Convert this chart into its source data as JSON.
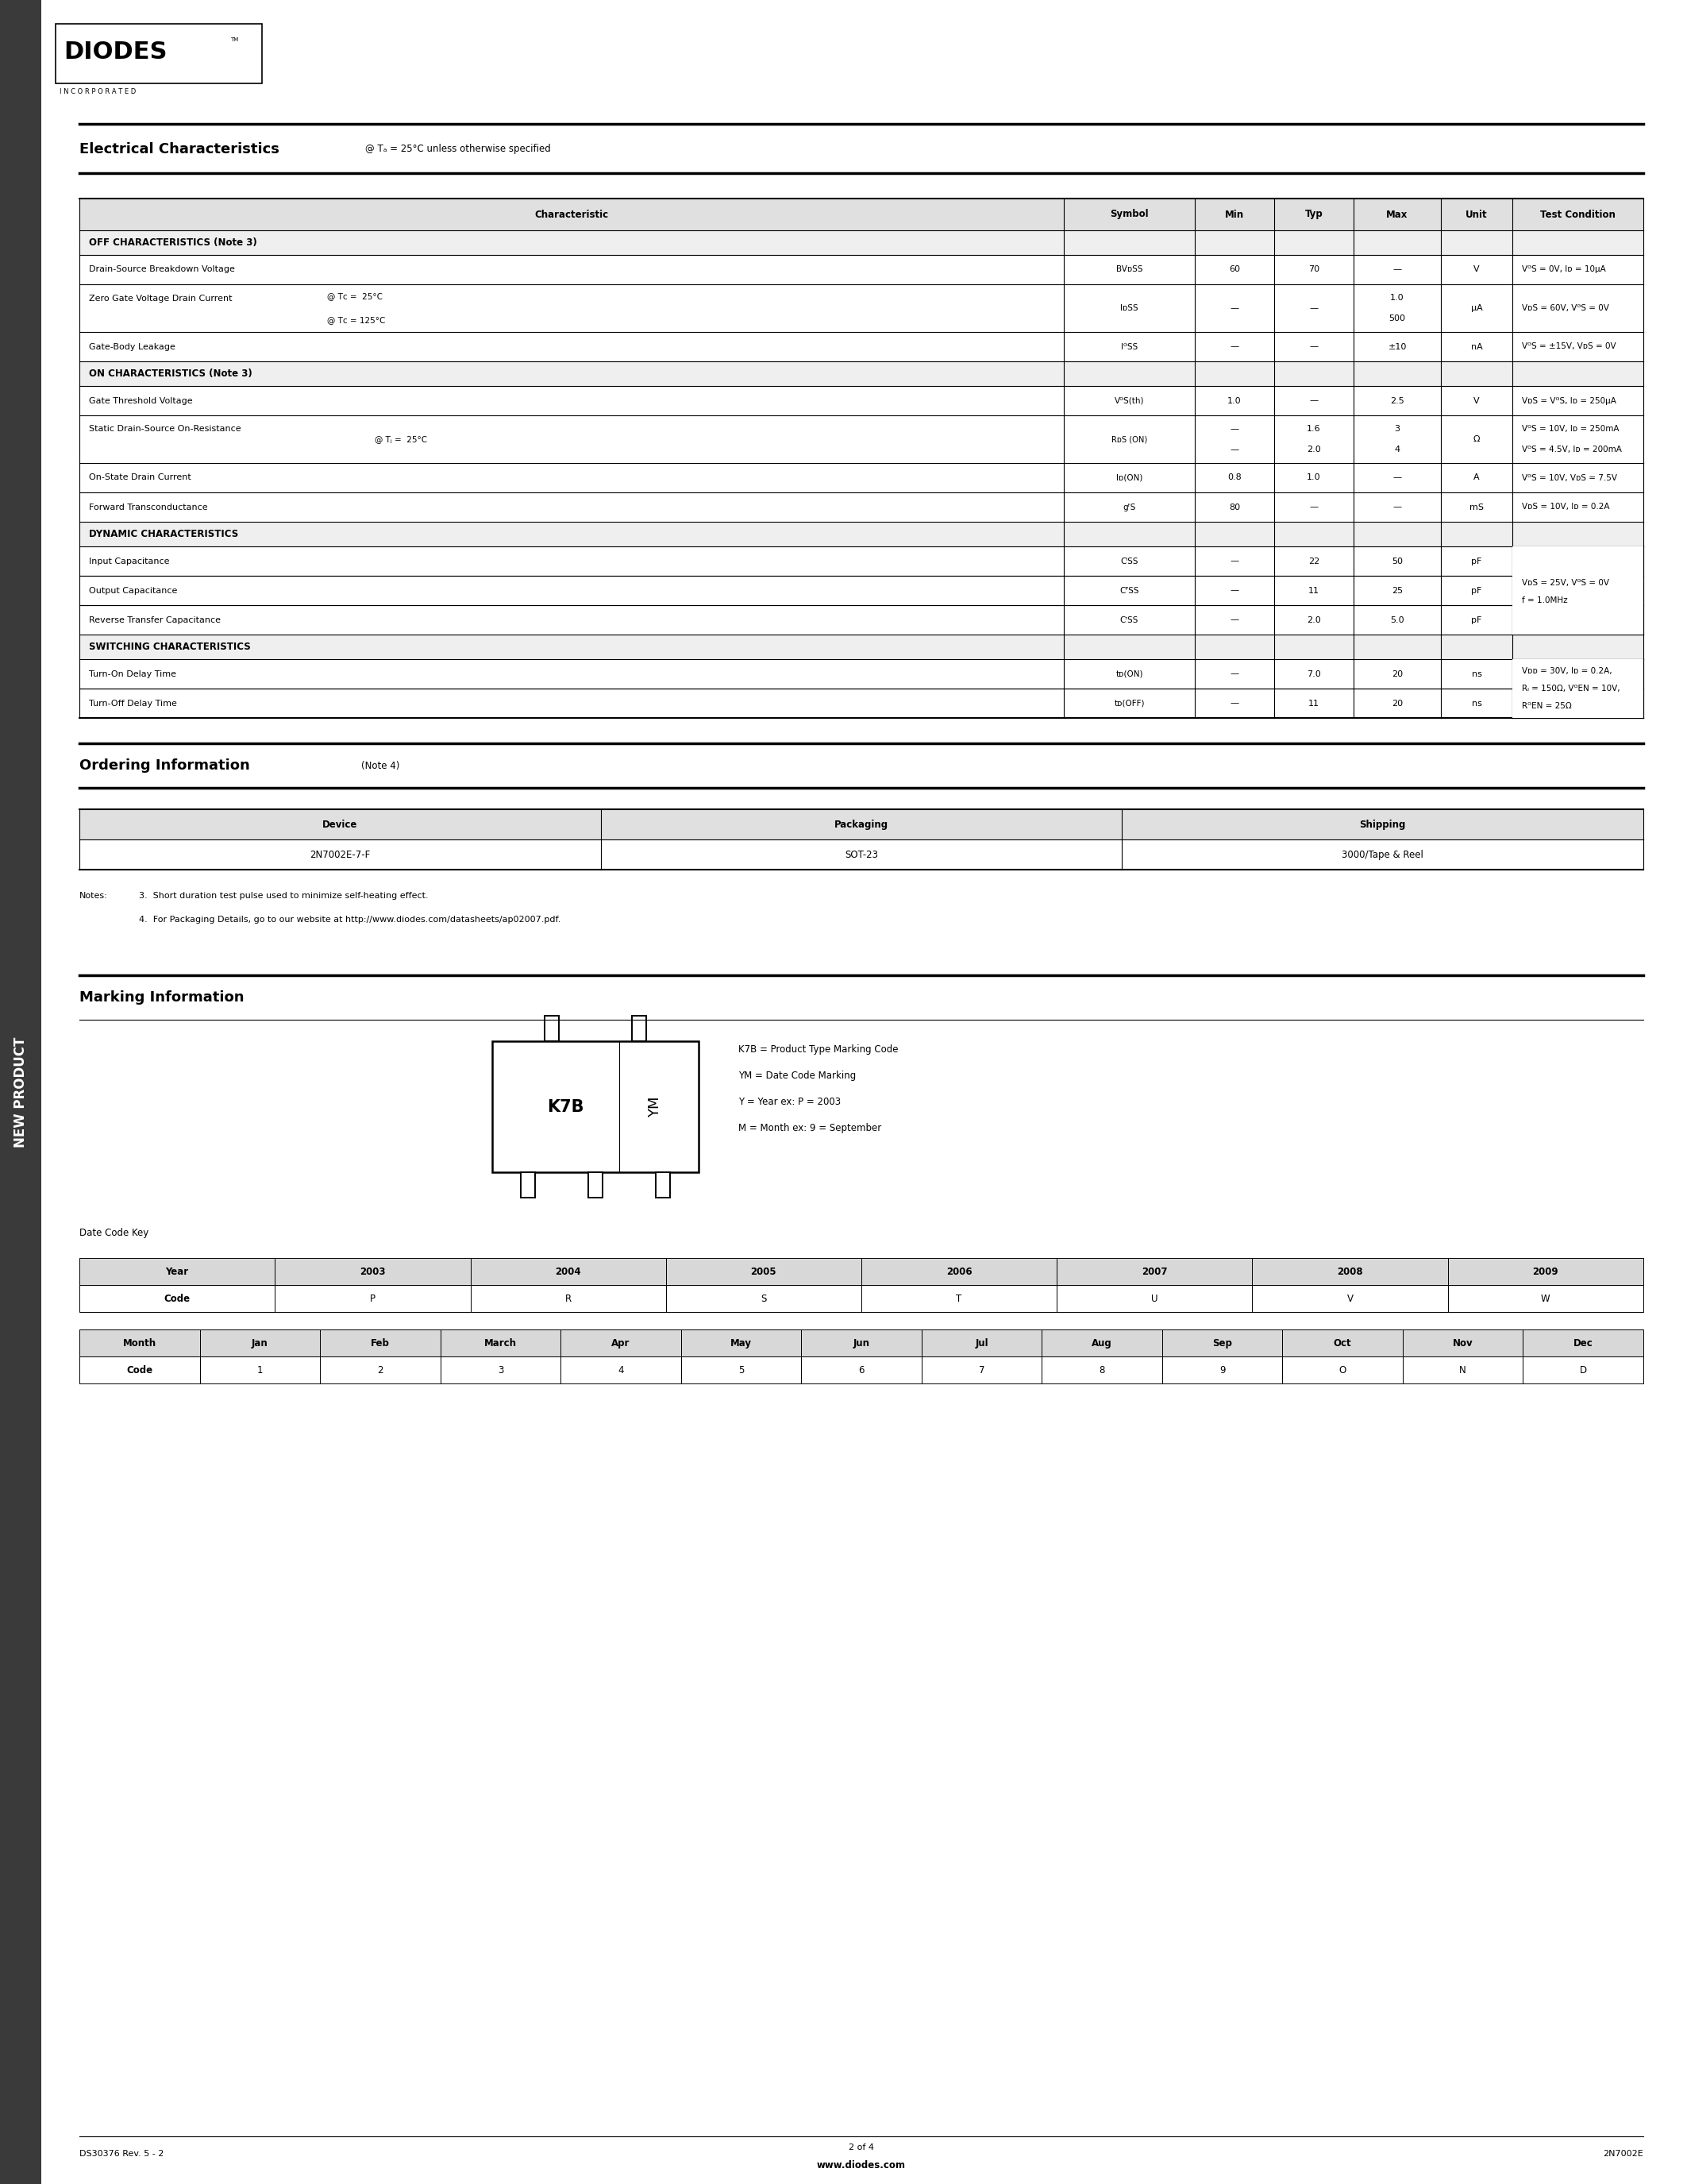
{
  "bg_color": "#ffffff",
  "sidebar_color": "#3a3a3a",
  "page_width": 21.25,
  "page_height": 27.5,
  "logo_text": "DIODES",
  "logo_subtext": "I N C O R P O R A T E D",
  "elec_title": "Electrical Characteristics",
  "elec_subtitle": "@ Tₐ = 25°C unless otherwise specified",
  "table_headers": [
    "Characteristic",
    "Symbol",
    "Min",
    "Typ",
    "Max",
    "Unit",
    "Test Condition"
  ],
  "elec_rows": [
    {
      "type": "section",
      "text": "OFF CHARACTERISTICS (Note 3)"
    },
    {
      "type": "data",
      "char": "Drain-Source Breakdown Voltage",
      "char2": "",
      "symbol": "BVᴅSS",
      "min": "60",
      "typ": "70",
      "max": "—",
      "unit": "V",
      "cond": "VᴳS = 0V, Iᴅ = 10μA"
    },
    {
      "type": "data2",
      "char": "Zero Gate Voltage Drain Current",
      "char2_1": "@ Tᴄ =  25°C",
      "char2_2": "@ Tᴄ = 125°C",
      "symbol": "IᴅSS",
      "min": "—",
      "typ": "—",
      "max1": "1.0",
      "max2": "500",
      "unit": "μA",
      "cond": "VᴅS = 60V, VᴳS = 0V"
    },
    {
      "type": "data",
      "char": "Gate-Body Leakage",
      "char2": "",
      "symbol": "IᴳSS",
      "min": "—",
      "typ": "—",
      "max": "±10",
      "unit": "nA",
      "cond": "VᴳS = ±15V, VᴅS = 0V"
    },
    {
      "type": "section",
      "text": "ON CHARACTERISTICS (Note 3)"
    },
    {
      "type": "data",
      "char": "Gate Threshold Voltage",
      "char2": "",
      "symbol": "VᴳS(th)",
      "min": "1.0",
      "typ": "—",
      "max": "2.5",
      "unit": "V",
      "cond": "VᴅS = VᴳS, Iᴅ = 250μA"
    },
    {
      "type": "data2b",
      "char": "Static Drain-Source On-Resistance",
      "char2": "@ Tⱼ =  25°C",
      "symbol": "RᴅS (ON)",
      "min1": "—",
      "min2": "—",
      "typ1": "1.6",
      "typ2": "2.0",
      "max1": "3",
      "max2": "4",
      "unit": "Ω",
      "cond1": "VᴳS = 10V, Iᴅ = 250mA",
      "cond2": "VᴳS = 4.5V, Iᴅ = 200mA"
    },
    {
      "type": "data",
      "char": "On-State Drain Current",
      "char2": "",
      "symbol": "Iᴅ(ON)",
      "min": "0.8",
      "typ": "1.0",
      "max": "—",
      "unit": "A",
      "cond": "VᴳS = 10V, VᴅS = 7.5V"
    },
    {
      "type": "data",
      "char": "Forward Transconductance",
      "char2": "",
      "symbol": "gᶠS",
      "min": "80",
      "typ": "—",
      "max": "—",
      "unit": "mS",
      "cond": "VᴅS = 10V, Iᴅ = 0.2A"
    },
    {
      "type": "section",
      "text": "DYNAMIC CHARACTERISTICS"
    },
    {
      "type": "data_ciss",
      "char": "Input Capacitance",
      "symbol": "CᴵSS",
      "min": "—",
      "typ": "22",
      "max": "50",
      "unit": "pF"
    },
    {
      "type": "data_coss",
      "char": "Output Capacitance",
      "symbol": "CᴾSS",
      "min": "—",
      "typ": "11",
      "max": "25",
      "unit": "pF",
      "cond1": "VᴅS = 25V, VᴳS = 0V",
      "cond2": "f = 1.0MHz"
    },
    {
      "type": "data_crss",
      "char": "Reverse Transfer Capacitance",
      "symbol": "CʳSS",
      "min": "—",
      "typ": "2.0",
      "max": "5.0",
      "unit": "pF"
    },
    {
      "type": "section",
      "text": "SWITCHING CHARACTERISTICS"
    },
    {
      "type": "data_ton",
      "char": "Turn-On Delay Time",
      "symbol": "tᴅ(ON)",
      "min": "—",
      "typ": "7.0",
      "max": "20",
      "unit": "ns"
    },
    {
      "type": "data_toff",
      "char": "Turn-Off Delay Time",
      "symbol": "tᴅ(OFF)",
      "min": "—",
      "typ": "11",
      "max": "20",
      "unit": "ns",
      "cond1": "Vᴅᴅ = 30V, Iᴅ = 0.2A,",
      "cond2": "Rₗ = 150Ω, VᴳEN = 10V,",
      "cond3": "RᴳEN = 25Ω"
    }
  ],
  "ordering_title": "Ordering Information",
  "ordering_note": "(Note 4)",
  "ordering_headers": [
    "Device",
    "Packaging",
    "Shipping"
  ],
  "ordering_rows": [
    [
      "2N7002E-7-F",
      "SOT-23",
      "3000/Tape & Reel"
    ]
  ],
  "notes_label": "Notes:",
  "notes": [
    "3.  Short duration test pulse used to minimize self-heating effect.",
    "4.  For Packaging Details, go to our website at http://www.diodes.com/datasheets/ap02007.pdf."
  ],
  "marking_title": "Marking Information",
  "marking_label_k7b": "K7B",
  "marking_label_ym": "YM",
  "marking_text1": "K7B = Product Type Marking Code",
  "marking_text2": "YM = Date Code Marking",
  "marking_text3": "Y = Year ex: P = 2003",
  "marking_text4": "M = Month ex: 9 = September",
  "date_code_title": "Date Code Key",
  "year_headers": [
    "Year",
    "2003",
    "2004",
    "2005",
    "2006",
    "2007",
    "2008",
    "2009"
  ],
  "year_codes": [
    "Code",
    "P",
    "R",
    "S",
    "T",
    "U",
    "V",
    "W"
  ],
  "month_headers": [
    "Month",
    "Jan",
    "Feb",
    "March",
    "Apr",
    "May",
    "Jun",
    "Jul",
    "Aug",
    "Sep",
    "Oct",
    "Nov",
    "Dec"
  ],
  "month_codes": [
    "Code",
    "1",
    "2",
    "3",
    "4",
    "5",
    "6",
    "7",
    "8",
    "9",
    "O",
    "N",
    "D"
  ],
  "footer_left": "DS30376 Rev. 5 - 2",
  "footer_center_top": "2 of 4",
  "footer_center_bot": "www.diodes.com",
  "footer_right": "2N7002E",
  "sidebar_text": "NEW PRODUCT"
}
